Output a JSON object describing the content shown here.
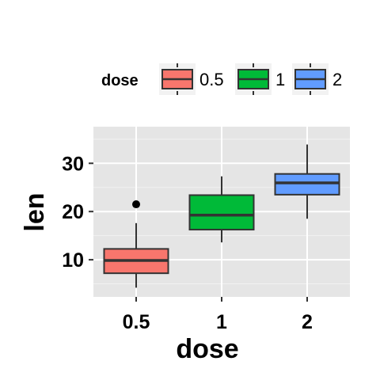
{
  "chart_data": {
    "type": "box",
    "xlabel": "dose",
    "ylabel": "len",
    "categories": [
      "0.5",
      "1",
      "2"
    ],
    "yticks": [
      10,
      20,
      30
    ],
    "ylim": [
      2.3,
      37.6
    ],
    "grid": true,
    "legend": {
      "title": "dose",
      "position": "top",
      "entries": [
        "0.5",
        "1",
        "2"
      ]
    },
    "series": [
      {
        "name": "0.5",
        "color": "#F8766D",
        "whisker_low": 4.2,
        "q1": 7.2,
        "median": 9.85,
        "q3": 12.25,
        "whisker_high": 17.6,
        "outliers": [
          21.5
        ]
      },
      {
        "name": "1",
        "color": "#00BA38",
        "whisker_low": 13.6,
        "q1": 16.25,
        "median": 19.25,
        "q3": 23.4,
        "whisker_high": 27.3,
        "outliers": []
      },
      {
        "name": "2",
        "color": "#619CFF",
        "whisker_low": 18.5,
        "q1": 23.5,
        "median": 25.95,
        "q3": 27.8,
        "whisker_high": 33.9,
        "outliers": []
      }
    ]
  }
}
